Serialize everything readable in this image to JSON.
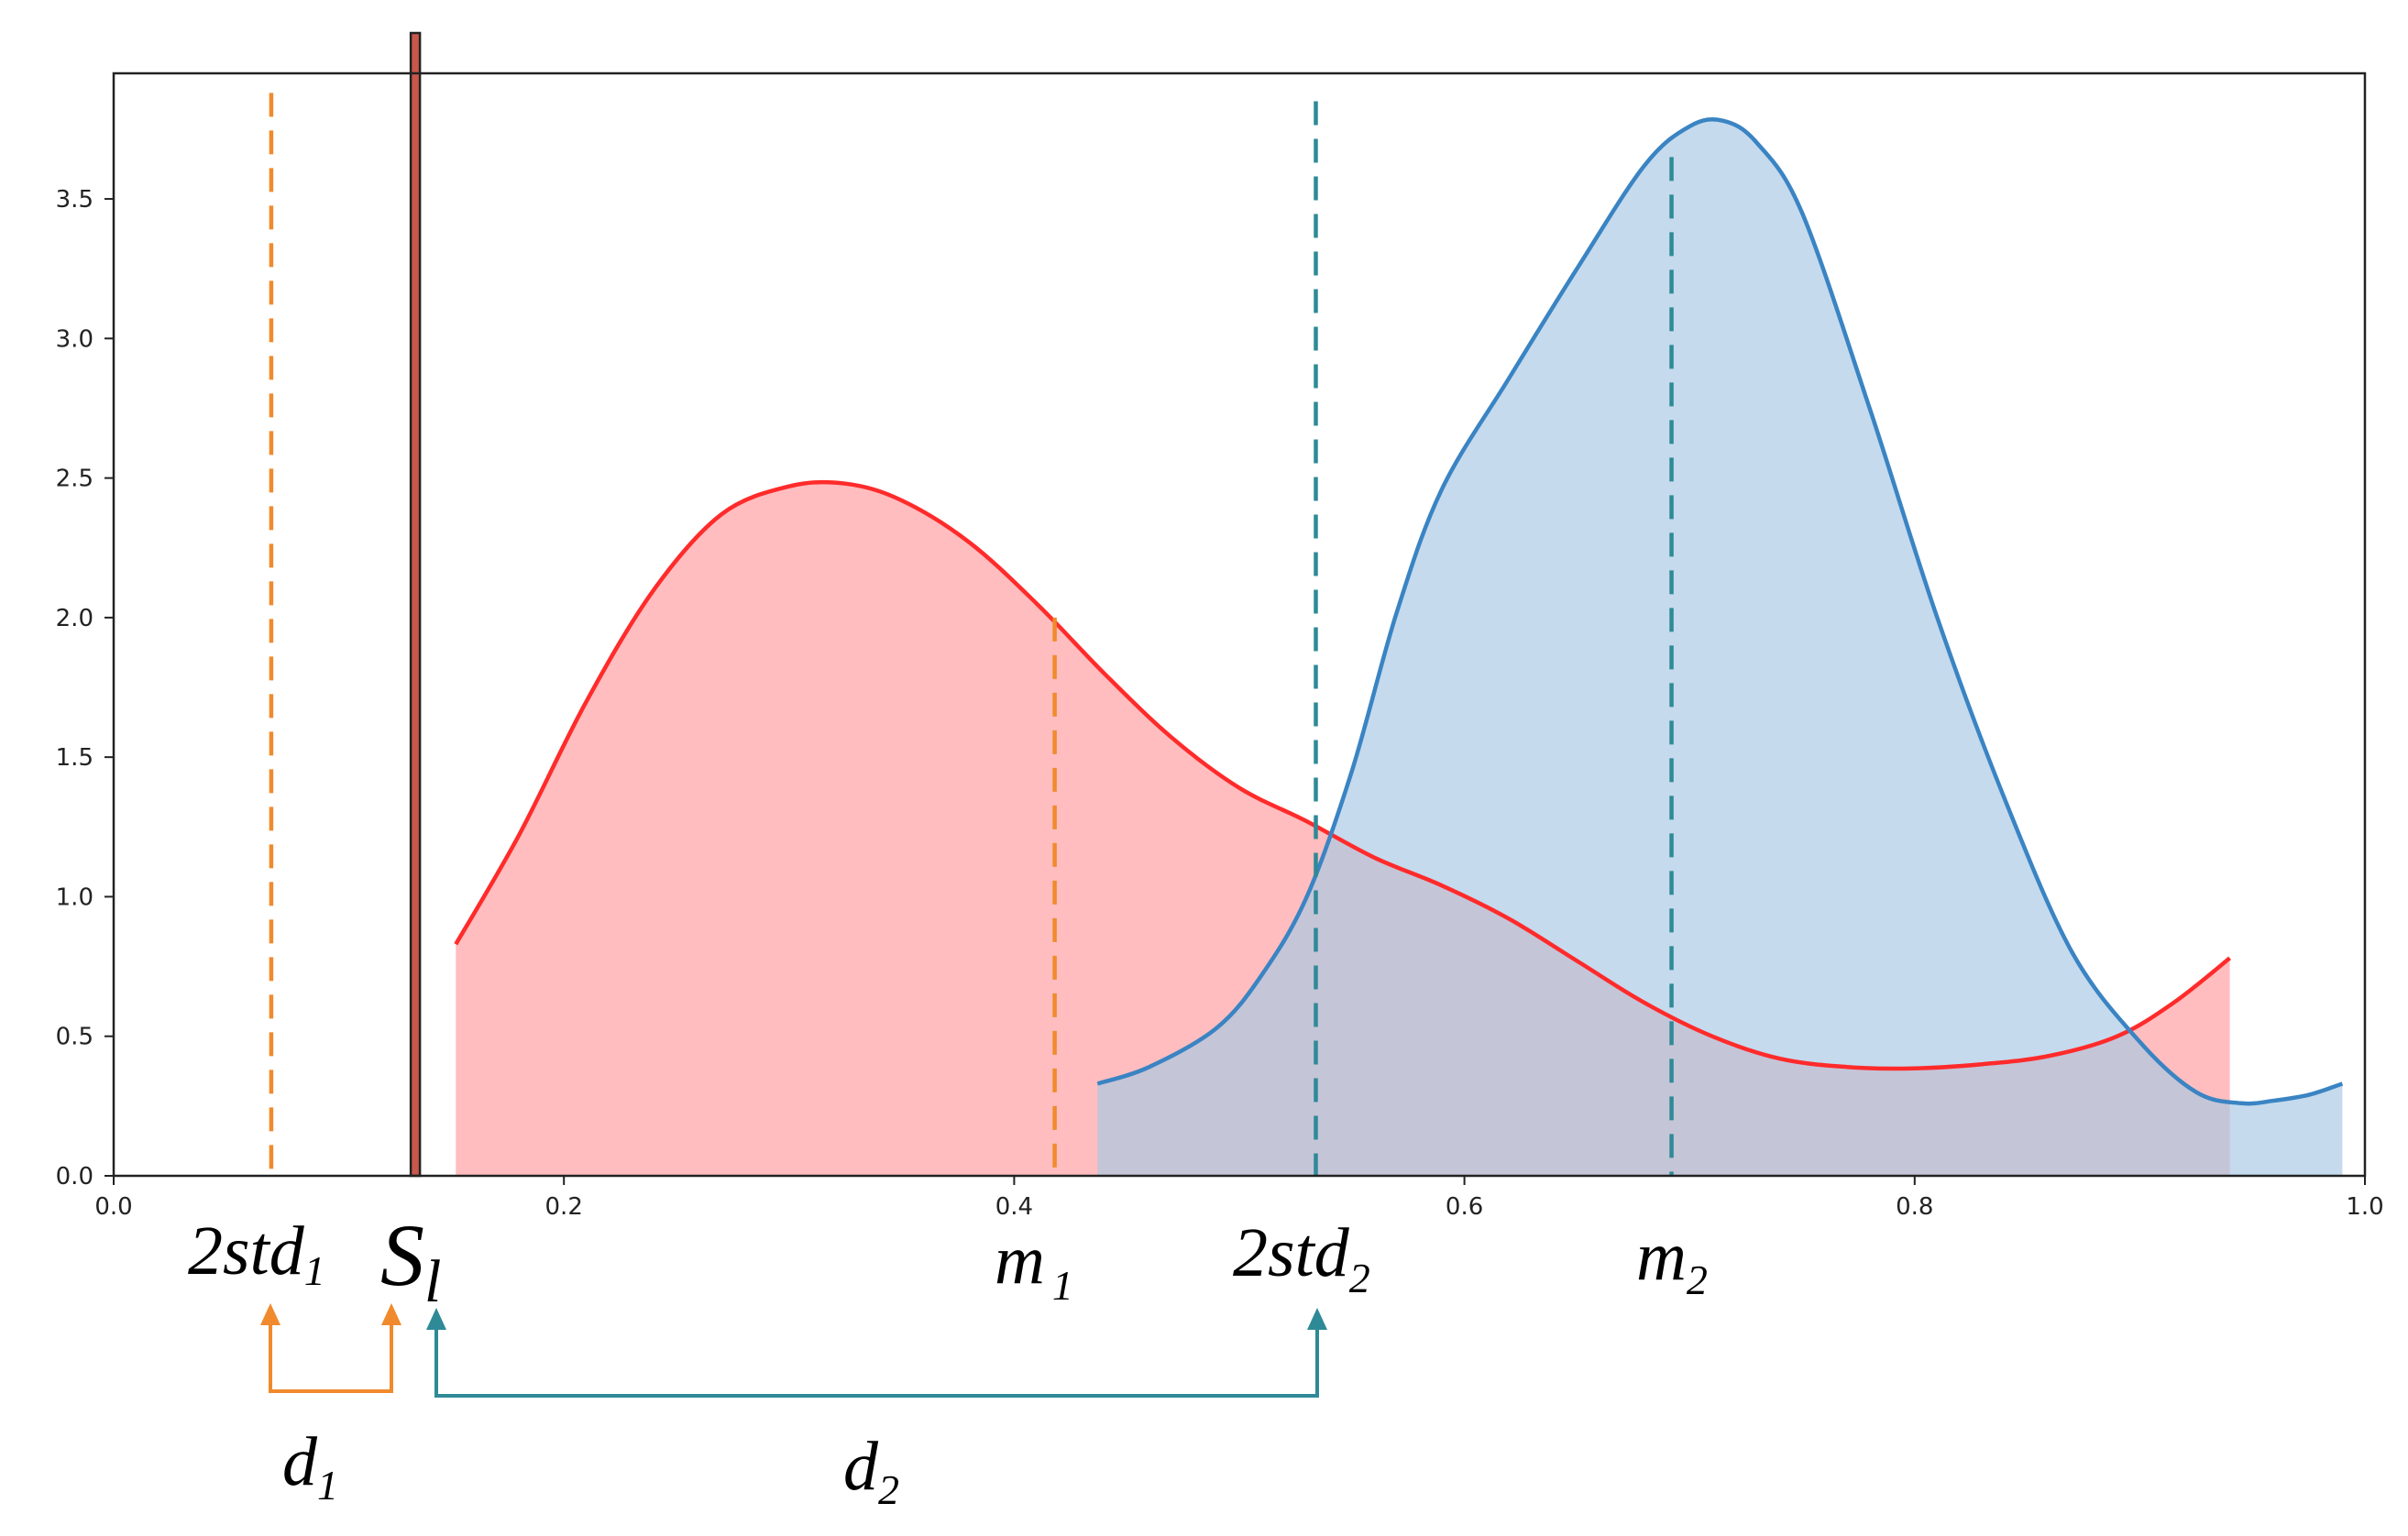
{
  "chart_data": {
    "type": "area",
    "title": "",
    "xlabel": "",
    "ylabel": "",
    "xlim": [
      0.0,
      1.0
    ],
    "ylim": [
      0.0,
      3.95
    ],
    "grid": false,
    "legend": "none",
    "x_ticks": [
      {
        "value": 0.0,
        "label": "0.0"
      },
      {
        "value": 0.2,
        "label": "0.2"
      },
      {
        "value": 0.4,
        "label": "0.4"
      },
      {
        "value": 0.6,
        "label": "0.6"
      },
      {
        "value": 0.8,
        "label": "0.8"
      },
      {
        "value": 1.0,
        "label": "1.0"
      }
    ],
    "y_ticks": [
      {
        "value": 0.0,
        "label": "0.0"
      },
      {
        "value": 0.5,
        "label": "0.5"
      },
      {
        "value": 1.0,
        "label": "1.0"
      },
      {
        "value": 1.5,
        "label": "1.5"
      },
      {
        "value": 2.0,
        "label": "2.0"
      },
      {
        "value": 2.5,
        "label": "2.5"
      },
      {
        "value": 3.0,
        "label": "3.0"
      },
      {
        "value": 3.5,
        "label": "3.5"
      }
    ],
    "series": [
      {
        "color": "#ff2b2b",
        "fill": "#ff9ea0",
        "fill_opacity": 0.68,
        "x": [
          0.152,
          0.18,
          0.21,
          0.24,
          0.27,
          0.3,
          0.325,
          0.35,
          0.38,
          0.41,
          0.44,
          0.47,
          0.5,
          0.53,
          0.56,
          0.59,
          0.62,
          0.65,
          0.68,
          0.71,
          0.74,
          0.77,
          0.8,
          0.83,
          0.86,
          0.89,
          0.915,
          0.94
        ],
        "y": [
          0.83,
          1.22,
          1.7,
          2.1,
          2.37,
          2.47,
          2.48,
          2.42,
          2.27,
          2.05,
          1.8,
          1.57,
          1.39,
          1.27,
          1.14,
          1.04,
          0.92,
          0.77,
          0.62,
          0.5,
          0.42,
          0.39,
          0.385,
          0.4,
          0.43,
          0.5,
          0.62,
          0.78
        ]
      },
      {
        "color": "#3a84c3",
        "fill": "#a9c9e4",
        "fill_opacity": 0.68,
        "x": [
          0.437,
          0.46,
          0.49,
          0.51,
          0.53,
          0.55,
          0.57,
          0.59,
          0.62,
          0.65,
          0.68,
          0.7,
          0.715,
          0.73,
          0.75,
          0.78,
          0.81,
          0.84,
          0.87,
          0.9,
          0.925,
          0.945,
          0.96,
          0.975,
          0.99
        ],
        "y": [
          0.33,
          0.39,
          0.53,
          0.72,
          1.0,
          1.45,
          2.02,
          2.46,
          2.86,
          3.25,
          3.62,
          3.76,
          3.78,
          3.7,
          3.45,
          2.75,
          2.0,
          1.35,
          0.8,
          0.48,
          0.3,
          0.26,
          0.27,
          0.29,
          0.33
        ]
      }
    ],
    "threshold_line": {
      "x": 0.134,
      "color": "#c9574a",
      "border": "#222222"
    },
    "dashed_lines": [
      {
        "x": 0.07,
        "y_top": 3.88,
        "color": "#f08a2c"
      },
      {
        "x": 0.418,
        "y_top": 2.0,
        "color": "#f08a2c"
      },
      {
        "x": 0.534,
        "y_top": 3.85,
        "color": "#2e8a96"
      },
      {
        "x": 0.692,
        "y_top": 3.65,
        "color": "#2e8a96"
      }
    ],
    "annotations": [
      {
        "main": "2std",
        "sub": "1"
      },
      {
        "main": "S",
        "sub": "l"
      },
      {
        "main": "m",
        "sub": "1"
      },
      {
        "main": "2std",
        "sub": "2"
      },
      {
        "main": "m",
        "sub": "2"
      },
      {
        "main": "d",
        "sub": "1"
      },
      {
        "main": "d",
        "sub": "2"
      }
    ],
    "brackets": [
      {
        "color": "#f08a2c"
      },
      {
        "color": "#2e8a96"
      }
    ]
  }
}
